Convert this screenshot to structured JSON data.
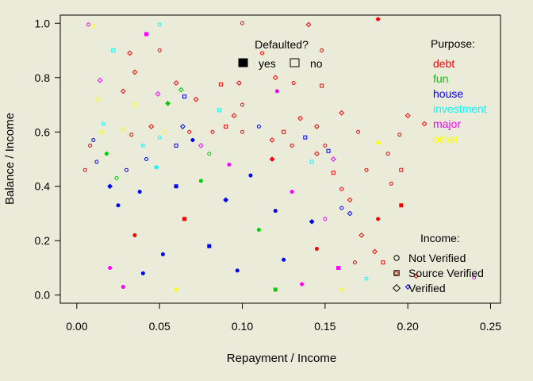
{
  "chart_data": {
    "type": "scatter",
    "xlabel": "Repayment / Income",
    "ylabel": "Balance / Income",
    "xlim": [
      -0.01,
      0.256
    ],
    "ylim": [
      -0.03,
      1.03
    ],
    "x_ticks": [
      {
        "value": 0.0,
        "label": "0.00"
      },
      {
        "value": 0.05,
        "label": "0.05"
      },
      {
        "value": 0.1,
        "label": "0.10"
      },
      {
        "value": 0.15,
        "label": "0.15"
      },
      {
        "value": 0.2,
        "label": "0.20"
      },
      {
        "value": 0.25,
        "label": "0.25"
      }
    ],
    "y_ticks": [
      {
        "value": 0.0,
        "label": "0.0"
      },
      {
        "value": 0.2,
        "label": "0.2"
      },
      {
        "value": 0.4,
        "label": "0.4"
      },
      {
        "value": 0.6,
        "label": "0.6"
      },
      {
        "value": 0.8,
        "label": "0.8"
      },
      {
        "value": 1.0,
        "label": "1.0"
      }
    ],
    "grid": false,
    "legends": {
      "defaulted": {
        "title": "Defaulted?",
        "placement": "top-center",
        "items": [
          {
            "label": "yes",
            "fill": "filled"
          },
          {
            "label": "no",
            "fill": "open"
          }
        ]
      },
      "purpose": {
        "title": "Purpose:",
        "placement": "top-right",
        "items": [
          {
            "label": "debt",
            "color": "#ff0000"
          },
          {
            "label": "fun",
            "color": "#00cd00"
          },
          {
            "label": "house",
            "color": "#0000ff"
          },
          {
            "label": "investment",
            "color": "#00ffff"
          },
          {
            "label": "major",
            "color": "#ff00ff"
          },
          {
            "label": "other",
            "color": "#ffff00"
          }
        ]
      },
      "income": {
        "title": "Income:",
        "placement": "bottom-right",
        "items": [
          {
            "label": "Not Verified",
            "shape": "circle"
          },
          {
            "label": "Source Verified",
            "shape": "square"
          },
          {
            "label": "Verified",
            "shape": "diamond"
          }
        ]
      }
    },
    "points": [
      {
        "x": 0.007,
        "y": 0.995,
        "purpose": "major",
        "income": "circle",
        "defaulted": "no"
      },
      {
        "x": 0.01,
        "y": 0.99,
        "purpose": "other",
        "income": "circle",
        "defaulted": "no"
      },
      {
        "x": 0.05,
        "y": 0.995,
        "purpose": "investment",
        "income": "circle",
        "defaulted": "no"
      },
      {
        "x": 0.042,
        "y": 0.96,
        "purpose": "major",
        "income": "square",
        "defaulted": "yes"
      },
      {
        "x": 0.1,
        "y": 1.0,
        "purpose": "debt",
        "income": "circle",
        "defaulted": "no"
      },
      {
        "x": 0.182,
        "y": 1.015,
        "purpose": "debt",
        "income": "circle",
        "defaulted": "yes"
      },
      {
        "x": 0.14,
        "y": 0.995,
        "purpose": "debt",
        "income": "diamond",
        "defaulted": "no"
      },
      {
        "x": 0.022,
        "y": 0.9,
        "purpose": "investment",
        "income": "square",
        "defaulted": "no"
      },
      {
        "x": 0.032,
        "y": 0.89,
        "purpose": "debt",
        "income": "diamond",
        "defaulted": "no"
      },
      {
        "x": 0.05,
        "y": 0.9,
        "purpose": "debt",
        "income": "circle",
        "defaulted": "no"
      },
      {
        "x": 0.112,
        "y": 0.89,
        "purpose": "debt",
        "income": "circle",
        "defaulted": "no"
      },
      {
        "x": 0.148,
        "y": 0.9,
        "purpose": "debt",
        "income": "circle",
        "defaulted": "no"
      },
      {
        "x": 0.014,
        "y": 0.79,
        "purpose": "major",
        "income": "diamond",
        "defaulted": "no"
      },
      {
        "x": 0.013,
        "y": 0.72,
        "purpose": "other",
        "income": "circle",
        "defaulted": "no"
      },
      {
        "x": 0.06,
        "y": 0.78,
        "purpose": "debt",
        "income": "diamond",
        "defaulted": "no"
      },
      {
        "x": 0.063,
        "y": 0.755,
        "purpose": "fun",
        "income": "diamond",
        "defaulted": "no"
      },
      {
        "x": 0.035,
        "y": 0.82,
        "purpose": "debt",
        "income": "diamond",
        "defaulted": "no"
      },
      {
        "x": 0.087,
        "y": 0.775,
        "purpose": "debt",
        "income": "square",
        "defaulted": "no"
      },
      {
        "x": 0.098,
        "y": 0.78,
        "purpose": "debt",
        "income": "diamond",
        "defaulted": "no"
      },
      {
        "x": 0.12,
        "y": 0.8,
        "purpose": "debt",
        "income": "diamond",
        "defaulted": "no"
      },
      {
        "x": 0.131,
        "y": 0.78,
        "purpose": "debt",
        "income": "circle",
        "defaulted": "no"
      },
      {
        "x": 0.148,
        "y": 0.77,
        "purpose": "debt",
        "income": "square",
        "defaulted": "no"
      },
      {
        "x": 0.121,
        "y": 0.75,
        "purpose": "major",
        "income": "circle",
        "defaulted": "yes"
      },
      {
        "x": 0.065,
        "y": 0.73,
        "purpose": "house",
        "income": "square",
        "defaulted": "no"
      },
      {
        "x": 0.049,
        "y": 0.74,
        "purpose": "major",
        "income": "diamond",
        "defaulted": "no"
      },
      {
        "x": 0.028,
        "y": 0.75,
        "purpose": "debt",
        "income": "diamond",
        "defaulted": "no"
      },
      {
        "x": 0.035,
        "y": 0.7,
        "purpose": "other",
        "income": "square",
        "defaulted": "no"
      },
      {
        "x": 0.055,
        "y": 0.705,
        "purpose": "fun",
        "income": "diamond",
        "defaulted": "yes"
      },
      {
        "x": 0.072,
        "y": 0.72,
        "purpose": "debt",
        "income": "diamond",
        "defaulted": "no"
      },
      {
        "x": 0.086,
        "y": 0.68,
        "purpose": "investment",
        "income": "square",
        "defaulted": "no"
      },
      {
        "x": 0.1,
        "y": 0.7,
        "purpose": "debt",
        "income": "circle",
        "defaulted": "no"
      },
      {
        "x": 0.16,
        "y": 0.67,
        "purpose": "debt",
        "income": "diamond",
        "defaulted": "no"
      },
      {
        "x": 0.2,
        "y": 0.66,
        "purpose": "debt",
        "income": "diamond",
        "defaulted": "no"
      },
      {
        "x": 0.21,
        "y": 0.63,
        "purpose": "debt",
        "income": "diamond",
        "defaulted": "no"
      },
      {
        "x": 0.22,
        "y": 0.57,
        "purpose": "other",
        "income": "diamond",
        "defaulted": "no"
      },
      {
        "x": 0.195,
        "y": 0.59,
        "purpose": "debt",
        "income": "circle",
        "defaulted": "no"
      },
      {
        "x": 0.182,
        "y": 0.56,
        "purpose": "other",
        "income": "circle",
        "defaulted": "yes"
      },
      {
        "x": 0.17,
        "y": 0.6,
        "purpose": "debt",
        "income": "circle",
        "defaulted": "no"
      },
      {
        "x": 0.188,
        "y": 0.52,
        "purpose": "debt",
        "income": "circle",
        "defaulted": "no"
      },
      {
        "x": 0.175,
        "y": 0.46,
        "purpose": "debt",
        "income": "circle",
        "defaulted": "no"
      },
      {
        "x": 0.196,
        "y": 0.46,
        "purpose": "debt",
        "income": "square",
        "defaulted": "no"
      },
      {
        "x": 0.19,
        "y": 0.41,
        "purpose": "debt",
        "income": "circle",
        "defaulted": "no"
      },
      {
        "x": 0.196,
        "y": 0.33,
        "purpose": "debt",
        "income": "square",
        "defaulted": "yes"
      },
      {
        "x": 0.182,
        "y": 0.28,
        "purpose": "debt",
        "income": "circle",
        "defaulted": "yes"
      },
      {
        "x": 0.165,
        "y": 0.3,
        "purpose": "house",
        "income": "diamond",
        "defaulted": "no"
      },
      {
        "x": 0.172,
        "y": 0.22,
        "purpose": "debt",
        "income": "diamond",
        "defaulted": "no"
      },
      {
        "x": 0.18,
        "y": 0.16,
        "purpose": "debt",
        "income": "diamond",
        "defaulted": "no"
      },
      {
        "x": 0.168,
        "y": 0.12,
        "purpose": "debt",
        "income": "circle",
        "defaulted": "no"
      },
      {
        "x": 0.193,
        "y": 0.08,
        "purpose": "debt",
        "income": "diamond",
        "defaulted": "no"
      },
      {
        "x": 0.205,
        "y": 0.07,
        "purpose": "debt",
        "income": "diamond",
        "defaulted": "no"
      },
      {
        "x": 0.2,
        "y": 0.03,
        "purpose": "house",
        "income": "diamond",
        "defaulted": "no"
      },
      {
        "x": 0.24,
        "y": 0.065,
        "purpose": "major",
        "income": "circle",
        "defaulted": "no"
      },
      {
        "x": 0.175,
        "y": 0.06,
        "purpose": "investment",
        "income": "circle",
        "defaulted": "no"
      },
      {
        "x": 0.16,
        "y": 0.02,
        "purpose": "other",
        "income": "circle",
        "defaulted": "no"
      },
      {
        "x": 0.185,
        "y": 0.12,
        "purpose": "debt",
        "income": "square",
        "defaulted": "no"
      },
      {
        "x": 0.155,
        "y": 0.45,
        "purpose": "debt",
        "income": "square",
        "defaulted": "no"
      },
      {
        "x": 0.16,
        "y": 0.39,
        "purpose": "debt",
        "income": "circle",
        "defaulted": "no"
      },
      {
        "x": 0.16,
        "y": 0.32,
        "purpose": "house",
        "income": "circle",
        "defaulted": "no"
      },
      {
        "x": 0.15,
        "y": 0.28,
        "purpose": "major",
        "income": "circle",
        "defaulted": "no"
      },
      {
        "x": 0.165,
        "y": 0.35,
        "purpose": "debt",
        "income": "diamond",
        "defaulted": "no"
      },
      {
        "x": 0.005,
        "y": 0.46,
        "purpose": "debt",
        "income": "circle",
        "defaulted": "no"
      },
      {
        "x": 0.008,
        "y": 0.55,
        "purpose": "debt",
        "income": "circle",
        "defaulted": "no"
      },
      {
        "x": 0.01,
        "y": 0.57,
        "purpose": "house",
        "income": "circle",
        "defaulted": "no"
      },
      {
        "x": 0.015,
        "y": 0.6,
        "purpose": "other",
        "income": "diamond",
        "defaulted": "no"
      },
      {
        "x": 0.016,
        "y": 0.63,
        "purpose": "investment",
        "income": "circle",
        "defaulted": "no"
      },
      {
        "x": 0.018,
        "y": 0.52,
        "purpose": "fun",
        "income": "circle",
        "defaulted": "yes"
      },
      {
        "x": 0.012,
        "y": 0.49,
        "purpose": "house",
        "income": "circle",
        "defaulted": "no"
      },
      {
        "x": 0.02,
        "y": 0.4,
        "purpose": "house",
        "income": "diamond",
        "defaulted": "yes"
      },
      {
        "x": 0.024,
        "y": 0.43,
        "purpose": "fun",
        "income": "circle",
        "defaulted": "no"
      },
      {
        "x": 0.03,
        "y": 0.46,
        "purpose": "house",
        "income": "circle",
        "defaulted": "no"
      },
      {
        "x": 0.028,
        "y": 0.61,
        "purpose": "other",
        "income": "circle",
        "defaulted": "no"
      },
      {
        "x": 0.033,
        "y": 0.59,
        "purpose": "debt",
        "income": "circle",
        "defaulted": "no"
      },
      {
        "x": 0.04,
        "y": 0.55,
        "purpose": "investment",
        "income": "circle",
        "defaulted": "no"
      },
      {
        "x": 0.042,
        "y": 0.5,
        "purpose": "house",
        "income": "circle",
        "defaulted": "no"
      },
      {
        "x": 0.045,
        "y": 0.62,
        "purpose": "debt",
        "income": "diamond",
        "defaulted": "no"
      },
      {
        "x": 0.05,
        "y": 0.58,
        "purpose": "investment",
        "income": "circle",
        "defaulted": "no"
      },
      {
        "x": 0.053,
        "y": 0.6,
        "purpose": "other",
        "income": "square",
        "defaulted": "no"
      },
      {
        "x": 0.06,
        "y": 0.55,
        "purpose": "house",
        "income": "square",
        "defaulted": "no"
      },
      {
        "x": 0.064,
        "y": 0.62,
        "purpose": "house",
        "income": "diamond",
        "defaulted": "no"
      },
      {
        "x": 0.068,
        "y": 0.6,
        "purpose": "debt",
        "income": "circle",
        "defaulted": "no"
      },
      {
        "x": 0.07,
        "y": 0.57,
        "purpose": "house",
        "income": "circle",
        "defaulted": "yes"
      },
      {
        "x": 0.075,
        "y": 0.55,
        "purpose": "major",
        "income": "diamond",
        "defaulted": "no"
      },
      {
        "x": 0.08,
        "y": 0.52,
        "purpose": "fun",
        "income": "circle",
        "defaulted": "no"
      },
      {
        "x": 0.082,
        "y": 0.6,
        "purpose": "debt",
        "income": "circle",
        "defaulted": "no"
      },
      {
        "x": 0.09,
        "y": 0.62,
        "purpose": "debt",
        "income": "square",
        "defaulted": "no"
      },
      {
        "x": 0.095,
        "y": 0.66,
        "purpose": "debt",
        "income": "diamond",
        "defaulted": "no"
      },
      {
        "x": 0.1,
        "y": 0.6,
        "purpose": "debt",
        "income": "circle",
        "defaulted": "no"
      },
      {
        "x": 0.11,
        "y": 0.62,
        "purpose": "house",
        "income": "circle",
        "defaulted": "no"
      },
      {
        "x": 0.118,
        "y": 0.57,
        "purpose": "debt",
        "income": "diamond",
        "defaulted": "no"
      },
      {
        "x": 0.125,
        "y": 0.6,
        "purpose": "debt",
        "income": "square",
        "defaulted": "no"
      },
      {
        "x": 0.13,
        "y": 0.55,
        "purpose": "debt",
        "income": "circle",
        "defaulted": "no"
      },
      {
        "x": 0.138,
        "y": 0.58,
        "purpose": "house",
        "income": "square",
        "defaulted": "no"
      },
      {
        "x": 0.145,
        "y": 0.52,
        "purpose": "debt",
        "income": "diamond",
        "defaulted": "no"
      },
      {
        "x": 0.15,
        "y": 0.55,
        "purpose": "debt",
        "income": "circle",
        "defaulted": "no"
      },
      {
        "x": 0.155,
        "y": 0.5,
        "purpose": "major",
        "income": "diamond",
        "defaulted": "no"
      },
      {
        "x": 0.152,
        "y": 0.53,
        "purpose": "house",
        "income": "square",
        "defaulted": "no"
      },
      {
        "x": 0.142,
        "y": 0.49,
        "purpose": "investment",
        "income": "square",
        "defaulted": "no"
      },
      {
        "x": 0.135,
        "y": 0.65,
        "purpose": "debt",
        "income": "diamond",
        "defaulted": "no"
      },
      {
        "x": 0.145,
        "y": 0.62,
        "purpose": "debt",
        "income": "diamond",
        "defaulted": "no"
      },
      {
        "x": 0.025,
        "y": 0.33,
        "purpose": "house",
        "income": "circle",
        "defaulted": "yes"
      },
      {
        "x": 0.038,
        "y": 0.38,
        "purpose": "house",
        "income": "circle",
        "defaulted": "yes"
      },
      {
        "x": 0.06,
        "y": 0.4,
        "purpose": "house",
        "income": "square",
        "defaulted": "yes"
      },
      {
        "x": 0.075,
        "y": 0.42,
        "purpose": "fun",
        "income": "circle",
        "defaulted": "yes"
      },
      {
        "x": 0.09,
        "y": 0.35,
        "purpose": "house",
        "income": "diamond",
        "defaulted": "yes"
      },
      {
        "x": 0.12,
        "y": 0.31,
        "purpose": "house",
        "income": "circle",
        "defaulted": "yes"
      },
      {
        "x": 0.13,
        "y": 0.38,
        "purpose": "major",
        "income": "circle",
        "defaulted": "yes"
      },
      {
        "x": 0.142,
        "y": 0.27,
        "purpose": "house",
        "income": "diamond",
        "defaulted": "yes"
      },
      {
        "x": 0.125,
        "y": 0.13,
        "purpose": "house",
        "income": "circle",
        "defaulted": "yes"
      },
      {
        "x": 0.097,
        "y": 0.09,
        "purpose": "house",
        "income": "circle",
        "defaulted": "yes"
      },
      {
        "x": 0.08,
        "y": 0.18,
        "purpose": "house",
        "income": "square",
        "defaulted": "yes"
      },
      {
        "x": 0.052,
        "y": 0.15,
        "purpose": "house",
        "income": "circle",
        "defaulted": "yes"
      },
      {
        "x": 0.04,
        "y": 0.08,
        "purpose": "house",
        "income": "circle",
        "defaulted": "yes"
      },
      {
        "x": 0.035,
        "y": 0.22,
        "purpose": "debt",
        "income": "circle",
        "defaulted": "yes"
      },
      {
        "x": 0.065,
        "y": 0.28,
        "purpose": "debt",
        "income": "square",
        "defaulted": "yes"
      },
      {
        "x": 0.11,
        "y": 0.24,
        "purpose": "fun",
        "income": "circle",
        "defaulted": "yes"
      },
      {
        "x": 0.145,
        "y": 0.17,
        "purpose": "debt",
        "income": "circle",
        "defaulted": "yes"
      },
      {
        "x": 0.158,
        "y": 0.1,
        "purpose": "major",
        "income": "square",
        "defaulted": "yes"
      },
      {
        "x": 0.02,
        "y": 0.1,
        "purpose": "major",
        "income": "circle",
        "defaulted": "yes"
      },
      {
        "x": 0.028,
        "y": 0.03,
        "purpose": "major",
        "income": "circle",
        "defaulted": "yes"
      },
      {
        "x": 0.06,
        "y": 0.02,
        "purpose": "other",
        "income": "circle",
        "defaulted": "yes"
      },
      {
        "x": 0.12,
        "y": 0.02,
        "purpose": "fun",
        "income": "square",
        "defaulted": "yes"
      },
      {
        "x": 0.136,
        "y": 0.04,
        "purpose": "major",
        "income": "circle",
        "defaulted": "yes"
      },
      {
        "x": 0.105,
        "y": 0.44,
        "purpose": "house",
        "income": "circle",
        "defaulted": "yes"
      },
      {
        "x": 0.118,
        "y": 0.5,
        "purpose": "debt",
        "income": "diamond",
        "defaulted": "yes"
      },
      {
        "x": 0.092,
        "y": 0.48,
        "purpose": "major",
        "income": "circle",
        "defaulted": "yes"
      },
      {
        "x": 0.048,
        "y": 0.47,
        "purpose": "investment",
        "income": "circle",
        "defaulted": "yes"
      }
    ]
  }
}
